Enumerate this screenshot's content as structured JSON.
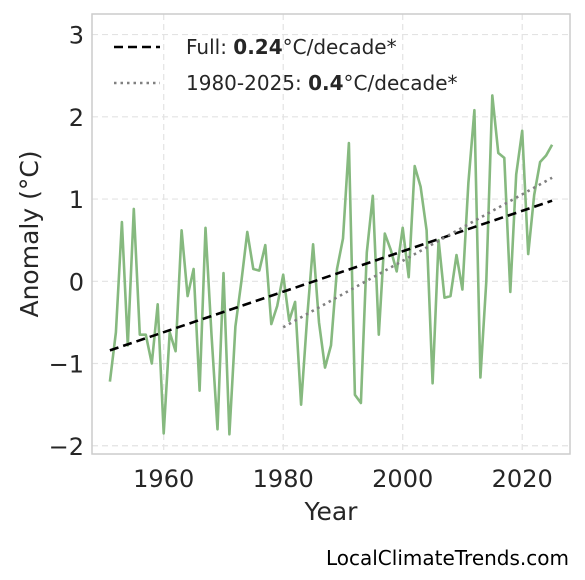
{
  "chart_data": {
    "type": "line",
    "xlabel": "Year",
    "ylabel": "Anomaly (°C)",
    "xlim": [
      1948,
      2028
    ],
    "ylim": [
      -2.1,
      3.25
    ],
    "xticks": [
      1960,
      1980,
      2000,
      2020
    ],
    "yticks": [
      -2,
      -1,
      0,
      1,
      2,
      3
    ],
    "ytick_labels": [
      "−2",
      "−1",
      "0",
      "1",
      "2",
      "3"
    ],
    "grid": true,
    "legend_position": "top-left",
    "series": [
      {
        "color": "#86b97f",
        "style": "solid",
        "x": [
          1951,
          1952,
          1953,
          1954,
          1955,
          1956,
          1957,
          1958,
          1959,
          1960,
          1961,
          1962,
          1963,
          1964,
          1965,
          1966,
          1967,
          1968,
          1969,
          1970,
          1971,
          1972,
          1973,
          1974,
          1975,
          1976,
          1977,
          1978,
          1979,
          1980,
          1981,
          1982,
          1983,
          1984,
          1985,
          1986,
          1987,
          1988,
          1989,
          1990,
          1991,
          1992,
          1993,
          1994,
          1995,
          1996,
          1997,
          1998,
          1999,
          2000,
          2001,
          2002,
          2003,
          2004,
          2005,
          2006,
          2007,
          2008,
          2009,
          2010,
          2011,
          2012,
          2013,
          2014,
          2015,
          2016,
          2017,
          2018,
          2019,
          2020,
          2021,
          2022,
          2023,
          2024,
          2025
        ],
        "y": [
          -1.22,
          -0.62,
          0.72,
          -0.78,
          0.88,
          -0.65,
          -0.65,
          -1.0,
          -0.28,
          -1.85,
          -0.62,
          -0.85,
          0.62,
          -0.18,
          0.15,
          -1.33,
          0.65,
          -0.65,
          -1.8,
          0.1,
          -1.86,
          -0.55,
          0.0,
          0.6,
          0.15,
          0.13,
          0.44,
          -0.52,
          -0.3,
          0.08,
          -0.48,
          -0.25,
          -1.5,
          -0.45,
          0.45,
          -0.5,
          -1.05,
          -0.78,
          0.15,
          0.52,
          1.68,
          -1.38,
          -1.48,
          0.35,
          1.04,
          -0.65,
          0.58,
          0.38,
          0.12,
          0.65,
          0.05,
          1.4,
          1.15,
          0.62,
          -1.24,
          0.5,
          -0.2,
          -0.18,
          0.32,
          -0.1,
          1.2,
          2.08,
          -1.17,
          0.0,
          2.26,
          1.56,
          1.5,
          -0.13,
          1.3,
          1.83,
          0.33,
          1.05,
          1.45,
          1.53,
          1.66
        ]
      },
      {
        "name": "Full: 0.24°C/decade*",
        "color": "#000000",
        "style": "dashed",
        "x": [
          1951,
          2025
        ],
        "y": [
          -0.84,
          0.98
        ]
      },
      {
        "name": "1980-2025: 0.4°C/decade*",
        "color": "#808080",
        "style": "dotted",
        "x": [
          1980,
          2025
        ],
        "y": [
          -0.56,
          1.26
        ]
      }
    ]
  },
  "legend": {
    "items": [
      {
        "prefix": "Full: ",
        "value": "0.24",
        "suffix": "°C/decade*"
      },
      {
        "prefix": "1980-2025: ",
        "value": "0.4",
        "suffix": "°C/decade*"
      }
    ]
  },
  "watermark": "LocalClimateTrends.com"
}
